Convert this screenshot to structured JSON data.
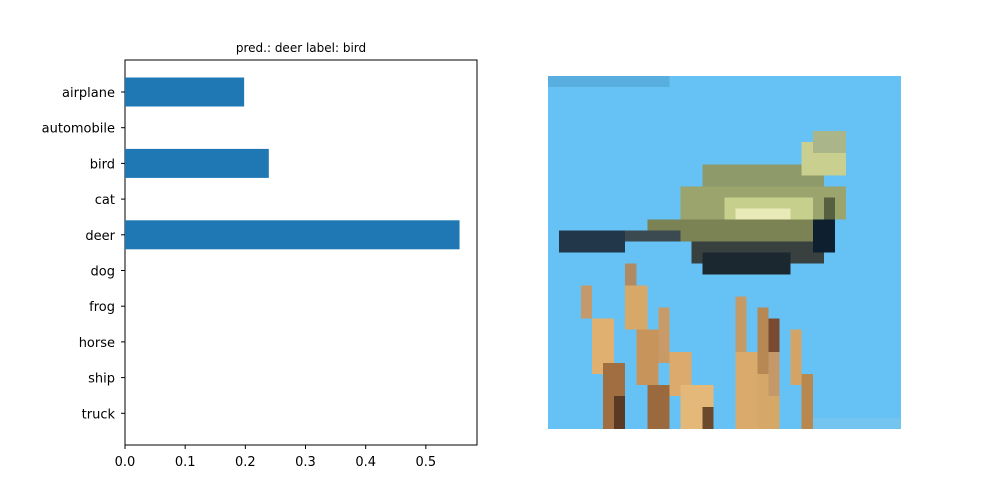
{
  "chart_data": {
    "type": "bar",
    "orientation": "horizontal",
    "title": "pred.: deer   label: bird",
    "categories": [
      "airplane",
      "automobile",
      "bird",
      "cat",
      "deer",
      "dog",
      "frog",
      "horse",
      "ship",
      "truck"
    ],
    "values": [
      0.198,
      0.0,
      0.239,
      0.0,
      0.556,
      0.0,
      0.0,
      0.0,
      0.0,
      0.0
    ],
    "xlim": [
      0,
      0.585
    ],
    "xticks": [
      "0.0",
      "0.1",
      "0.2",
      "0.3",
      "0.4",
      "0.5"
    ],
    "xlabel": "",
    "ylabel": "",
    "grid": false,
    "bar_color": "#1f77b4"
  },
  "image_panel": {
    "subject": "bird",
    "sky_color": "#66c2f5"
  }
}
